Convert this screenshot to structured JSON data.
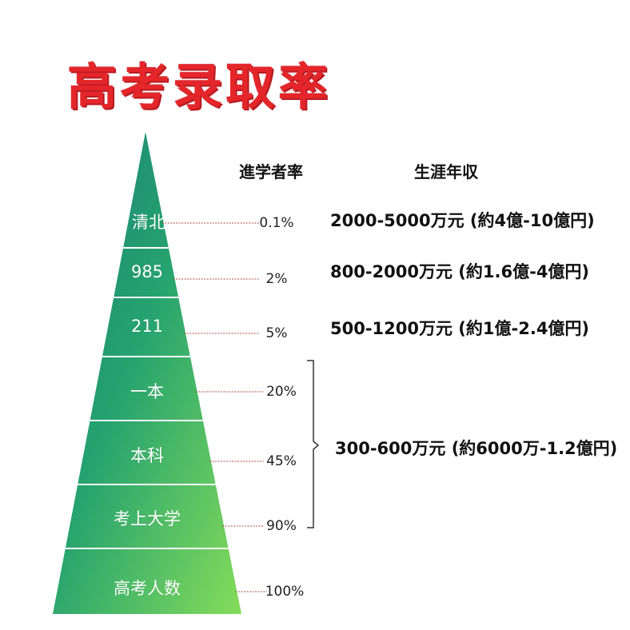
{
  "title": "高考录取率",
  "headers": {
    "rate": "進学者率",
    "income": "生涯年収"
  },
  "tiers": [
    {
      "label": "清北",
      "rate": "0.1%"
    },
    {
      "label": "985",
      "rate": "2%"
    },
    {
      "label": "211",
      "rate": "5%"
    },
    {
      "label": "一本",
      "rate": "20%"
    },
    {
      "label": "本科",
      "rate": "45%"
    },
    {
      "label": "考上大学",
      "rate": "90%"
    },
    {
      "label": "高考人数",
      "rate": "100%"
    }
  ],
  "incomes": [
    "2000-5000万元 (約4億-10億円)",
    "800-2000万元 (約1.6億-4億円)",
    "500-1200万元 (約1億-2.4億円)",
    "300-600万元 (約6000万-1.2億円)"
  ],
  "colors": {
    "title": "#e4262b",
    "pyramid_top": "#1f8f6a",
    "pyramid_bottom": "#7ad657"
  }
}
